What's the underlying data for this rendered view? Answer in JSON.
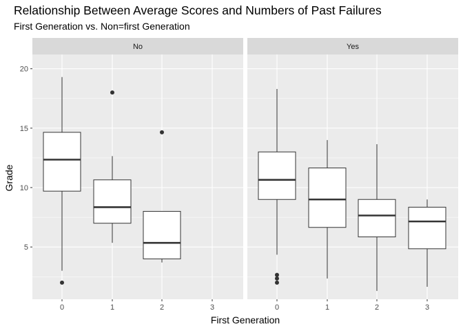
{
  "chart_data": {
    "type": "box",
    "title": "Relationship Between Average Scores and Numbers of Past Failures",
    "subtitle": "First Generation vs. Non=first Generation",
    "xlabel": "First Generation",
    "ylabel": "Grade",
    "x_ticks": [
      "0",
      "1",
      "2",
      "3"
    ],
    "y_ticks": [
      5,
      10,
      15,
      20
    ],
    "ylim": [
      0.6,
      21.2
    ],
    "grid": true,
    "colors": {
      "panel_background": "#ebebeb",
      "strip_background": "#d9d9d9",
      "grid_major": "#ffffff",
      "box_fill": "#ffffff",
      "box_stroke": "#333333"
    },
    "facets": [
      {
        "label": "No",
        "boxes": [
          {
            "x": "0",
            "lower_whisker": 3.0,
            "q1": 9.7,
            "median": 12.35,
            "q3": 14.65,
            "upper_whisker": 19.3,
            "outliers": [
              2.0
            ]
          },
          {
            "x": "1",
            "lower_whisker": 5.35,
            "q1": 7.0,
            "median": 8.35,
            "q3": 10.65,
            "upper_whisker": 12.65,
            "outliers": [
              18.0
            ]
          },
          {
            "x": "2",
            "lower_whisker": 3.7,
            "q1": 4.0,
            "median": 5.35,
            "q3": 8.0,
            "upper_whisker": 8.0,
            "outliers": [
              14.65
            ]
          }
        ]
      },
      {
        "label": "Yes",
        "boxes": [
          {
            "x": "0",
            "lower_whisker": 4.35,
            "q1": 9.0,
            "median": 10.65,
            "q3": 13.0,
            "upper_whisker": 18.3,
            "outliers": [
              2.0,
              2.35,
              2.65
            ]
          },
          {
            "x": "1",
            "lower_whisker": 2.35,
            "q1": 6.65,
            "median": 9.0,
            "q3": 11.65,
            "upper_whisker": 14.0,
            "outliers": []
          },
          {
            "x": "2",
            "lower_whisker": 1.3,
            "q1": 5.85,
            "median": 7.65,
            "q3": 9.0,
            "upper_whisker": 13.65,
            "outliers": []
          },
          {
            "x": "3",
            "lower_whisker": 1.65,
            "q1": 4.85,
            "median": 7.15,
            "q3": 8.35,
            "upper_whisker": 9.0,
            "outliers": []
          }
        ]
      }
    ]
  }
}
